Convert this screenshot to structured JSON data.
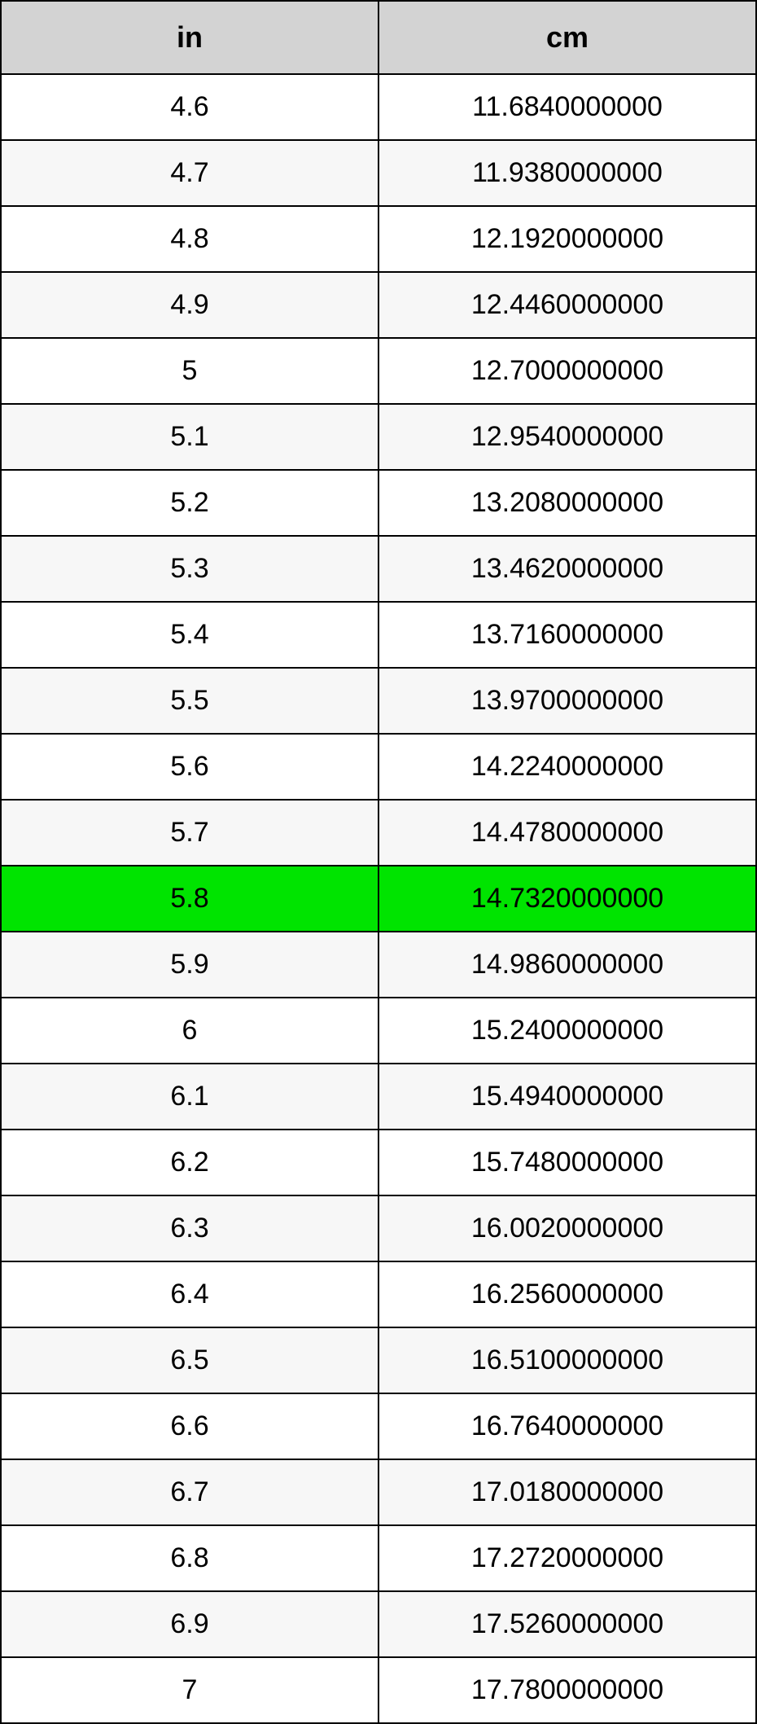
{
  "table": {
    "type": "table",
    "columns": [
      "in",
      "cm"
    ],
    "header_bg": "#d3d3d3",
    "header_fontsize": 36,
    "header_fontweight": "bold",
    "cell_fontsize": 34,
    "border_color": "#000000",
    "border_width": 2,
    "row_bg_odd": "#ffffff",
    "row_bg_even": "#f7f7f7",
    "highlight_bg": "#00e400",
    "highlight_index": 12,
    "col_widths": [
      "50%",
      "50%"
    ],
    "rows": [
      [
        "4.6",
        "11.6840000000"
      ],
      [
        "4.7",
        "11.9380000000"
      ],
      [
        "4.8",
        "12.1920000000"
      ],
      [
        "4.9",
        "12.4460000000"
      ],
      [
        "5",
        "12.7000000000"
      ],
      [
        "5.1",
        "12.9540000000"
      ],
      [
        "5.2",
        "13.2080000000"
      ],
      [
        "5.3",
        "13.4620000000"
      ],
      [
        "5.4",
        "13.7160000000"
      ],
      [
        "5.5",
        "13.9700000000"
      ],
      [
        "5.6",
        "14.2240000000"
      ],
      [
        "5.7",
        "14.4780000000"
      ],
      [
        "5.8",
        "14.7320000000"
      ],
      [
        "5.9",
        "14.9860000000"
      ],
      [
        "6",
        "15.2400000000"
      ],
      [
        "6.1",
        "15.4940000000"
      ],
      [
        "6.2",
        "15.7480000000"
      ],
      [
        "6.3",
        "16.0020000000"
      ],
      [
        "6.4",
        "16.2560000000"
      ],
      [
        "6.5",
        "16.5100000000"
      ],
      [
        "6.6",
        "16.7640000000"
      ],
      [
        "6.7",
        "17.0180000000"
      ],
      [
        "6.8",
        "17.2720000000"
      ],
      [
        "6.9",
        "17.5260000000"
      ],
      [
        "7",
        "17.7800000000"
      ]
    ]
  }
}
